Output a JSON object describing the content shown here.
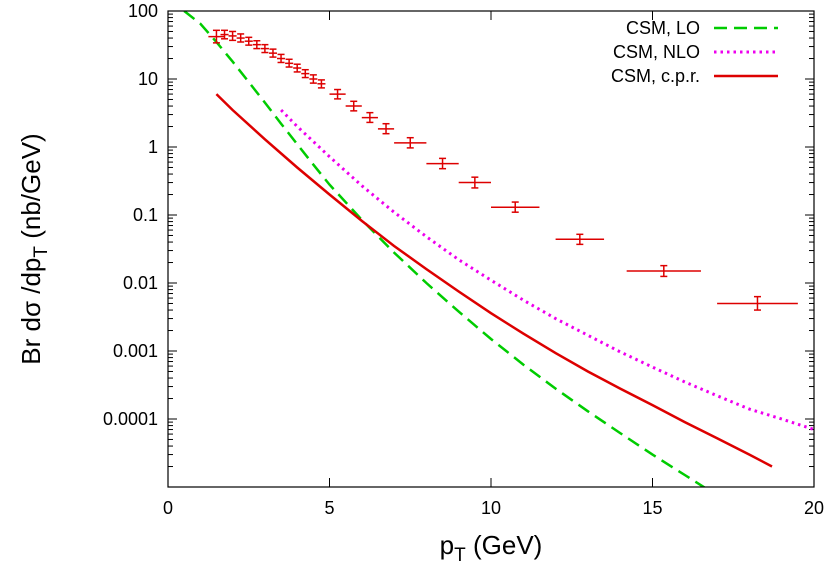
{
  "chart_data": {
    "type": "line",
    "xlabel_main": "p",
    "xlabel_sub": "T",
    "xlabel_rest": " (GeV)",
    "ylabel_main": "Br dσ /dp",
    "ylabel_sub": "T",
    "ylabel_rest": "   (nb/GeV)",
    "xlim": [
      0,
      20
    ],
    "ylim": [
      1e-05,
      100
    ],
    "yscale": "log",
    "x_ticks": [
      {
        "v": 0,
        "label": "0"
      },
      {
        "v": 5,
        "label": "5"
      },
      {
        "v": 10,
        "label": "10"
      },
      {
        "v": 15,
        "label": "15"
      },
      {
        "v": 20,
        "label": "20"
      }
    ],
    "y_ticks": [
      {
        "v": 100,
        "label": "100"
      },
      {
        "v": 10,
        "label": "10"
      },
      {
        "v": 1,
        "label": "1"
      },
      {
        "v": 0.1,
        "label": "0.1"
      },
      {
        "v": 0.01,
        "label": "0.01"
      },
      {
        "v": 0.001,
        "label": "0.001"
      },
      {
        "v": 0.0001,
        "label": "0.0001"
      }
    ],
    "legend_position": "top-right",
    "series": [
      {
        "name": "CSM, LO",
        "color": "#00cc00",
        "dash": "dashed",
        "x": [
          0.5,
          1.0,
          1.5,
          2.0,
          2.5,
          3.0,
          3.5,
          4.0,
          4.5,
          5.0,
          6.0,
          7.0,
          8.0,
          9.0,
          10.0,
          11.0,
          12.0,
          13.0,
          14.0,
          15.0,
          16.0,
          17.0,
          17.3
        ],
        "y": [
          100,
          65,
          35,
          18,
          9,
          4.5,
          2.2,
          1.1,
          0.55,
          0.28,
          0.085,
          0.028,
          0.01,
          0.0038,
          0.0015,
          0.00063,
          0.00028,
          0.00013,
          6.2e-05,
          3e-05,
          1.5e-05,
          7.5e-06,
          6e-06
        ]
      },
      {
        "name": "CSM, NLO",
        "color": "#ee00ee",
        "dash": "dotted",
        "x": [
          3.5,
          4.0,
          4.5,
          5.0,
          6.0,
          7.0,
          8.0,
          9.0,
          10.0,
          11.0,
          12.0,
          13.0,
          14.0,
          15.0,
          16.0,
          17.0,
          18.0,
          19.0,
          20.0
        ],
        "y": [
          3.5,
          2.0,
          1.2,
          0.72,
          0.27,
          0.11,
          0.048,
          0.022,
          0.011,
          0.0056,
          0.003,
          0.0017,
          0.00097,
          0.00058,
          0.00035,
          0.00022,
          0.00014,
          0.0001,
          7e-05
        ]
      },
      {
        "name": "CSM, c.p.r.",
        "color": "#dd0000",
        "dash": "solid",
        "x": [
          1.5,
          2.0,
          3.0,
          4.0,
          5.0,
          6.0,
          7.0,
          8.0,
          9.0,
          10.0,
          11.0,
          12.0,
          13.0,
          14.0,
          15.0,
          16.0,
          17.0,
          18.0,
          18.7
        ],
        "y": [
          6,
          3.5,
          1.3,
          0.5,
          0.2,
          0.082,
          0.035,
          0.016,
          0.0075,
          0.0036,
          0.0018,
          0.00093,
          0.0005,
          0.00028,
          0.00016,
          9e-05,
          5.2e-05,
          3e-05,
          2e-05
        ]
      }
    ],
    "data_points": {
      "name": "",
      "color": "#dd0000",
      "points": [
        {
          "x": 1.5,
          "xerr": 0.25,
          "y": 42,
          "ylo": 34,
          "yhi": 52
        },
        {
          "x": 1.75,
          "xerr": 0.125,
          "y": 45,
          "ylo": 39,
          "yhi": 52
        },
        {
          "x": 2.0,
          "xerr": 0.125,
          "y": 43,
          "ylo": 37,
          "yhi": 50
        },
        {
          "x": 2.25,
          "xerr": 0.125,
          "y": 40,
          "ylo": 35,
          "yhi": 46
        },
        {
          "x": 2.5,
          "xerr": 0.125,
          "y": 36,
          "ylo": 31.5,
          "yhi": 41
        },
        {
          "x": 2.75,
          "xerr": 0.125,
          "y": 32,
          "ylo": 28,
          "yhi": 36.5
        },
        {
          "x": 3.0,
          "xerr": 0.125,
          "y": 28,
          "ylo": 24.5,
          "yhi": 32
        },
        {
          "x": 3.25,
          "xerr": 0.125,
          "y": 24,
          "ylo": 21,
          "yhi": 27.5
        },
        {
          "x": 3.5,
          "xerr": 0.125,
          "y": 20,
          "ylo": 17.5,
          "yhi": 23
        },
        {
          "x": 3.75,
          "xerr": 0.125,
          "y": 17,
          "ylo": 15,
          "yhi": 19.5
        },
        {
          "x": 4.0,
          "xerr": 0.125,
          "y": 14.5,
          "ylo": 12.7,
          "yhi": 16.5
        },
        {
          "x": 4.25,
          "xerr": 0.125,
          "y": 12,
          "ylo": 10.5,
          "yhi": 13.7
        },
        {
          "x": 4.5,
          "xerr": 0.125,
          "y": 10,
          "ylo": 8.7,
          "yhi": 11.5
        },
        {
          "x": 4.75,
          "xerr": 0.125,
          "y": 8.5,
          "ylo": 7.4,
          "yhi": 9.7
        },
        {
          "x": 5.25,
          "xerr": 0.25,
          "y": 6.0,
          "ylo": 5.1,
          "yhi": 7.0
        },
        {
          "x": 5.75,
          "xerr": 0.25,
          "y": 4.0,
          "ylo": 3.4,
          "yhi": 4.7
        },
        {
          "x": 6.25,
          "xerr": 0.25,
          "y": 2.7,
          "ylo": 2.3,
          "yhi": 3.2
        },
        {
          "x": 6.75,
          "xerr": 0.25,
          "y": 1.85,
          "ylo": 1.57,
          "yhi": 2.2
        },
        {
          "x": 7.5,
          "xerr": 0.5,
          "y": 1.15,
          "ylo": 0.97,
          "yhi": 1.37
        },
        {
          "x": 8.5,
          "xerr": 0.5,
          "y": 0.57,
          "ylo": 0.48,
          "yhi": 0.68
        },
        {
          "x": 9.5,
          "xerr": 0.5,
          "y": 0.3,
          "ylo": 0.25,
          "yhi": 0.36
        },
        {
          "x": 10.75,
          "xerr": 0.75,
          "y": 0.13,
          "ylo": 0.11,
          "yhi": 0.155
        },
        {
          "x": 12.75,
          "xerr": 0.75,
          "y": 0.044,
          "ylo": 0.037,
          "yhi": 0.052
        },
        {
          "x": 15.35,
          "xerr": 1.15,
          "y": 0.015,
          "ylo": 0.0125,
          "yhi": 0.018
        },
        {
          "x": 18.25,
          "xerr": 1.25,
          "y": 0.005,
          "ylo": 0.004,
          "yhi": 0.0063
        }
      ]
    }
  }
}
